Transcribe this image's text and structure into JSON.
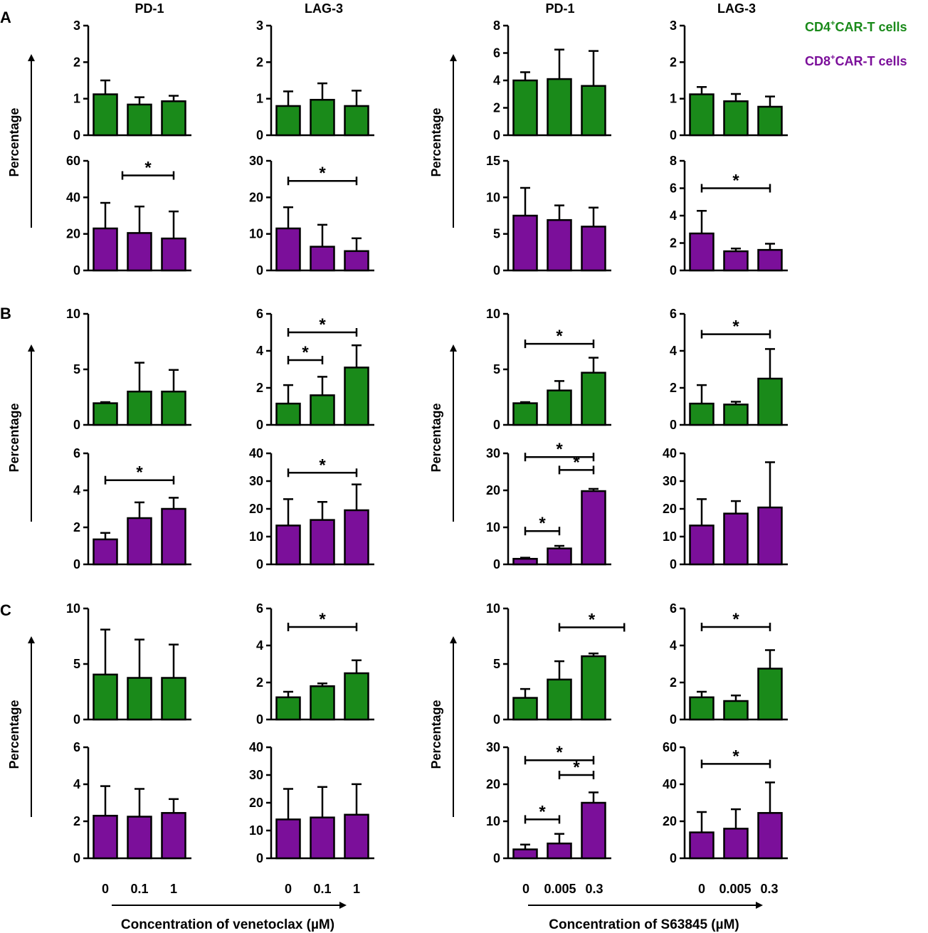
{
  "panel_labels": [
    "A",
    "B",
    "C"
  ],
  "column_titles": [
    "PD-1",
    "LAG-3",
    "PD-1",
    "LAG-3"
  ],
  "legend": {
    "cd4": {
      "label": "CD4",
      "sup": "+",
      "rest": "CAR-T cells",
      "color": "#1a8a1a"
    },
    "cd8": {
      "label": "CD8",
      "sup": "+",
      "rest": "CAR-T cells",
      "color": "#7b0f9a"
    }
  },
  "y_axis_label": "Percentage",
  "x_groups": [
    {
      "ticks": [
        "0",
        "0.1",
        "1"
      ],
      "label": "Concentration of venetoclax (µM)"
    },
    {
      "ticks": [
        "0",
        "0.005",
        "0.3"
      ],
      "label": "Concentration of S63845 (µM)"
    }
  ],
  "colors": {
    "cd4": "#1a8a1a",
    "cd8": "#7b0f9a",
    "axis": "#000000"
  },
  "chart_data": [
    {
      "type": "bar",
      "panel": "A",
      "cells": "CD4",
      "marker": "PD-1",
      "drug": "venetoclax",
      "categories": [
        "0",
        "0.1",
        "1"
      ],
      "values": [
        1.12,
        0.84,
        0.93
      ],
      "errors": [
        0.38,
        0.2,
        0.15
      ],
      "ylim": [
        0,
        3
      ],
      "yticks": [
        0,
        1,
        2,
        3
      ],
      "sig": []
    },
    {
      "type": "bar",
      "panel": "A",
      "cells": "CD4",
      "marker": "LAG-3",
      "drug": "venetoclax",
      "categories": [
        "0",
        "0.1",
        "1"
      ],
      "values": [
        0.8,
        0.97,
        0.8
      ],
      "errors": [
        0.4,
        0.45,
        0.42
      ],
      "ylim": [
        0,
        3
      ],
      "yticks": [
        0,
        1,
        2,
        3
      ],
      "sig": []
    },
    {
      "type": "bar",
      "panel": "A",
      "cells": "CD4",
      "marker": "PD-1",
      "drug": "S63845",
      "categories": [
        "0",
        "0.005",
        "0.3"
      ],
      "values": [
        4.0,
        4.1,
        3.6
      ],
      "errors": [
        0.6,
        2.15,
        2.55
      ],
      "ylim": [
        0,
        8
      ],
      "yticks": [
        0,
        2,
        4,
        6,
        8
      ],
      "sig": []
    },
    {
      "type": "bar",
      "panel": "A",
      "cells": "CD4",
      "marker": "LAG-3",
      "drug": "S63845",
      "categories": [
        "0",
        "0.005",
        "0.3"
      ],
      "values": [
        1.12,
        0.93,
        0.78
      ],
      "errors": [
        0.2,
        0.2,
        0.28
      ],
      "ylim": [
        0,
        3
      ],
      "yticks": [
        0,
        1,
        2,
        3
      ],
      "sig": []
    },
    {
      "type": "bar",
      "panel": "A",
      "cells": "CD8",
      "marker": "PD-1",
      "drug": "venetoclax",
      "categories": [
        "0",
        "0.1",
        "1"
      ],
      "values": [
        23,
        20.5,
        17.5
      ],
      "errors": [
        14,
        14.5,
        14.8
      ],
      "ylim": [
        0,
        60
      ],
      "yticks": [
        0,
        20,
        40,
        60
      ],
      "sig": [
        {
          "from": 0.5,
          "to": 2,
          "level": 52,
          "label": "*"
        }
      ]
    },
    {
      "type": "bar",
      "panel": "A",
      "cells": "CD8",
      "marker": "LAG-3",
      "drug": "venetoclax",
      "categories": [
        "0",
        "0.1",
        "1"
      ],
      "values": [
        11.5,
        6.5,
        5.3
      ],
      "errors": [
        5.8,
        6.0,
        3.5
      ],
      "ylim": [
        0,
        30
      ],
      "yticks": [
        0,
        10,
        20,
        30
      ],
      "sig": [
        {
          "from": 0,
          "to": 2,
          "level": 24.5,
          "label": "*"
        }
      ]
    },
    {
      "type": "bar",
      "panel": "A",
      "cells": "CD8",
      "marker": "PD-1",
      "drug": "S63845",
      "categories": [
        "0",
        "0.005",
        "0.3"
      ],
      "values": [
        7.5,
        6.9,
        6.0
      ],
      "errors": [
        3.8,
        2.0,
        2.6
      ],
      "ylim": [
        0,
        15
      ],
      "yticks": [
        0,
        5,
        10,
        15
      ],
      "sig": []
    },
    {
      "type": "bar",
      "panel": "A",
      "cells": "CD8",
      "marker": "LAG-3",
      "drug": "S63845",
      "categories": [
        "0",
        "0.005",
        "0.3"
      ],
      "values": [
        2.7,
        1.4,
        1.5
      ],
      "errors": [
        1.65,
        0.2,
        0.45
      ],
      "ylim": [
        0,
        8
      ],
      "yticks": [
        0,
        2,
        4,
        6,
        8
      ],
      "sig": [
        {
          "from": 0,
          "to": 2,
          "level": 6,
          "label": "*"
        }
      ]
    },
    {
      "type": "bar",
      "panel": "B",
      "cells": "CD4",
      "marker": "PD-1",
      "drug": "venetoclax",
      "categories": [
        "0",
        "0.1",
        "1"
      ],
      "values": [
        1.95,
        3.0,
        3.0
      ],
      "errors": [
        0.1,
        2.6,
        1.95
      ],
      "ylim": [
        0,
        10
      ],
      "yticks": [
        0,
        5,
        10
      ],
      "sig": []
    },
    {
      "type": "bar",
      "panel": "B",
      "cells": "CD4",
      "marker": "LAG-3",
      "drug": "venetoclax",
      "categories": [
        "0",
        "0.1",
        "1"
      ],
      "values": [
        1.15,
        1.6,
        3.1
      ],
      "errors": [
        1.0,
        1.0,
        1.2
      ],
      "ylim": [
        0,
        6
      ],
      "yticks": [
        0,
        2,
        4,
        6
      ],
      "sig": [
        {
          "from": 0,
          "to": 2,
          "level": 5.0,
          "label": "*"
        },
        {
          "from": 0,
          "to": 1,
          "level": 3.5,
          "label": "*"
        }
      ]
    },
    {
      "type": "bar",
      "panel": "B",
      "cells": "CD4",
      "marker": "PD-1",
      "drug": "S63845",
      "categories": [
        "0",
        "0.005",
        "0.3"
      ],
      "values": [
        1.95,
        3.1,
        4.7
      ],
      "errors": [
        0.1,
        0.85,
        1.35
      ],
      "ylim": [
        0,
        10
      ],
      "yticks": [
        0,
        5,
        10
      ],
      "sig": [
        {
          "from": 0,
          "to": 2,
          "level": 7.3,
          "label": "*"
        }
      ]
    },
    {
      "type": "bar",
      "panel": "B",
      "cells": "CD4",
      "marker": "LAG-3",
      "drug": "S63845",
      "categories": [
        "0",
        "0.005",
        "0.3"
      ],
      "values": [
        1.15,
        1.1,
        2.5
      ],
      "errors": [
        1.0,
        0.15,
        1.6
      ],
      "ylim": [
        0,
        6
      ],
      "yticks": [
        0,
        2,
        4,
        6
      ],
      "sig": [
        {
          "from": 0,
          "to": 2,
          "level": 4.9,
          "label": "*"
        }
      ]
    },
    {
      "type": "bar",
      "panel": "B",
      "cells": "CD8",
      "marker": "PD-1",
      "drug": "venetoclax",
      "categories": [
        "0",
        "0.1",
        "1"
      ],
      "values": [
        1.35,
        2.5,
        3.0
      ],
      "errors": [
        0.35,
        0.85,
        0.6
      ],
      "ylim": [
        0,
        6
      ],
      "yticks": [
        0,
        2,
        4,
        6
      ],
      "sig": [
        {
          "from": 0,
          "to": 2,
          "level": 4.55,
          "label": "*"
        }
      ]
    },
    {
      "type": "bar",
      "panel": "B",
      "cells": "CD8",
      "marker": "LAG-3",
      "drug": "venetoclax",
      "categories": [
        "0",
        "0.1",
        "1"
      ],
      "values": [
        14,
        16,
        19.5
      ],
      "errors": [
        9.5,
        6.5,
        9.3
      ],
      "ylim": [
        0,
        40
      ],
      "yticks": [
        0,
        10,
        20,
        30,
        40
      ],
      "sig": [
        {
          "from": 0,
          "to": 2,
          "level": 33,
          "label": "*"
        }
      ]
    },
    {
      "type": "bar",
      "panel": "B",
      "cells": "CD8",
      "marker": "PD-1",
      "drug": "S63845",
      "categories": [
        "0",
        "0.005",
        "0.3"
      ],
      "values": [
        1.5,
        4.3,
        19.8
      ],
      "errors": [
        0.3,
        0.7,
        0.6
      ],
      "ylim": [
        0,
        30
      ],
      "yticks": [
        0,
        10,
        20,
        30
      ],
      "sig": [
        {
          "from": 0,
          "to": 2,
          "level": 29,
          "label": "*"
        },
        {
          "from": 1,
          "to": 2,
          "level": 25.5,
          "label": "*"
        },
        {
          "from": 0,
          "to": 1,
          "level": 9,
          "label": "*"
        }
      ]
    },
    {
      "type": "bar",
      "panel": "B",
      "cells": "CD8",
      "marker": "LAG-3",
      "drug": "S63845",
      "categories": [
        "0",
        "0.005",
        "0.3"
      ],
      "values": [
        14,
        18.3,
        20.5
      ],
      "errors": [
        9.5,
        4.5,
        16.3
      ],
      "ylim": [
        0,
        40
      ],
      "yticks": [
        0,
        10,
        20,
        30,
        40
      ],
      "sig": []
    },
    {
      "type": "bar",
      "panel": "C",
      "cells": "CD4",
      "marker": "PD-1",
      "drug": "venetoclax",
      "categories": [
        "0",
        "0.1",
        "1"
      ],
      "values": [
        4.05,
        3.75,
        3.75
      ],
      "errors": [
        4.05,
        3.45,
        3.0
      ],
      "ylim": [
        0,
        10
      ],
      "yticks": [
        0,
        5,
        10
      ],
      "sig": []
    },
    {
      "type": "bar",
      "panel": "C",
      "cells": "CD4",
      "marker": "LAG-3",
      "drug": "venetoclax",
      "categories": [
        "0",
        "0.1",
        "1"
      ],
      "values": [
        1.2,
        1.8,
        2.5
      ],
      "errors": [
        0.3,
        0.15,
        0.7
      ],
      "ylim": [
        0,
        6
      ],
      "yticks": [
        0,
        2,
        4,
        6
      ],
      "sig": [
        {
          "from": 0,
          "to": 2,
          "level": 5.0,
          "label": "*"
        }
      ]
    },
    {
      "type": "bar",
      "panel": "C",
      "cells": "CD4",
      "marker": "PD-1",
      "drug": "S63845",
      "categories": [
        "0",
        "0.005",
        "0.3"
      ],
      "values": [
        1.95,
        3.6,
        5.7
      ],
      "errors": [
        0.8,
        1.65,
        0.25
      ],
      "ylim": [
        0,
        10
      ],
      "yticks": [
        0,
        5,
        10
      ],
      "sig": [
        {
          "from": 1,
          "to": 2.9,
          "level": 8.3,
          "label": "*"
        }
      ]
    },
    {
      "type": "bar",
      "panel": "C",
      "cells": "CD4",
      "marker": "LAG-3",
      "drug": "S63845",
      "categories": [
        "0",
        "0.005",
        "0.3"
      ],
      "values": [
        1.2,
        1.0,
        2.75
      ],
      "errors": [
        0.3,
        0.3,
        1.0
      ],
      "ylim": [
        0,
        6
      ],
      "yticks": [
        0,
        2,
        4,
        6
      ],
      "sig": [
        {
          "from": 0,
          "to": 2,
          "level": 5.0,
          "label": "*"
        }
      ]
    },
    {
      "type": "bar",
      "panel": "C",
      "cells": "CD8",
      "marker": "PD-1",
      "drug": "venetoclax",
      "categories": [
        "0",
        "0.1",
        "1"
      ],
      "values": [
        2.3,
        2.25,
        2.45
      ],
      "errors": [
        1.6,
        1.5,
        0.75
      ],
      "ylim": [
        0,
        6
      ],
      "yticks": [
        0,
        2,
        4,
        6
      ],
      "sig": []
    },
    {
      "type": "bar",
      "panel": "C",
      "cells": "CD8",
      "marker": "LAG-3",
      "drug": "venetoclax",
      "categories": [
        "0",
        "0.1",
        "1"
      ],
      "values": [
        14,
        14.7,
        15.7
      ],
      "errors": [
        11,
        11,
        11
      ],
      "ylim": [
        0,
        40
      ],
      "yticks": [
        0,
        10,
        20,
        30,
        40
      ],
      "sig": []
    },
    {
      "type": "bar",
      "panel": "C",
      "cells": "CD8",
      "marker": "PD-1",
      "drug": "S63845",
      "categories": [
        "0",
        "0.005",
        "0.3"
      ],
      "values": [
        2.4,
        4.0,
        15.0
      ],
      "errors": [
        1.3,
        2.6,
        2.8
      ],
      "ylim": [
        0,
        30
      ],
      "yticks": [
        0,
        10,
        20,
        30
      ],
      "sig": [
        {
          "from": 0,
          "to": 2,
          "level": 26.5,
          "label": "*"
        },
        {
          "from": 1,
          "to": 2,
          "level": 22.5,
          "label": "*"
        },
        {
          "from": 0,
          "to": 1,
          "level": 10.5,
          "label": "*"
        }
      ]
    },
    {
      "type": "bar",
      "panel": "C",
      "cells": "CD8",
      "marker": "LAG-3",
      "drug": "S63845",
      "categories": [
        "0",
        "0.005",
        "0.3"
      ],
      "values": [
        14,
        16,
        24.5
      ],
      "errors": [
        11,
        10.5,
        16.5
      ],
      "ylim": [
        0,
        60
      ],
      "yticks": [
        0,
        20,
        40,
        60
      ],
      "sig": [
        {
          "from": 0,
          "to": 2,
          "level": 51,
          "label": "*"
        }
      ]
    }
  ]
}
